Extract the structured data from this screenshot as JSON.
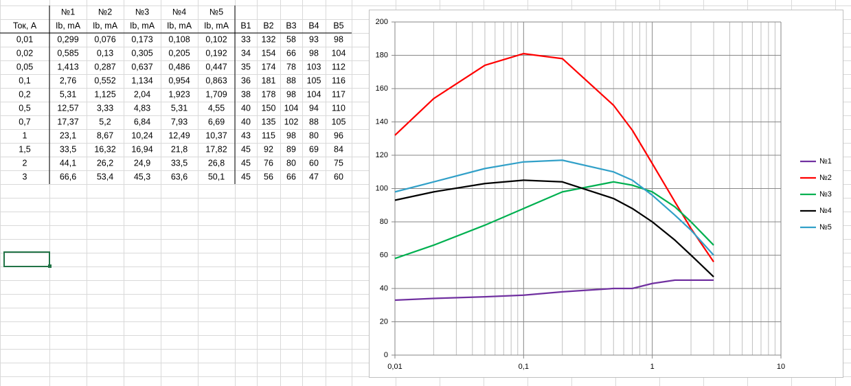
{
  "table": {
    "header": [
      "№1",
      "№2",
      "№3",
      "№4",
      "№5"
    ],
    "columns": [
      "Ток, А",
      "Ib, mA",
      "Ib, mA",
      "Ib, mA",
      "Ib, mA",
      "Ib, mA",
      "B1",
      "B2",
      "B3",
      "B4",
      "B5"
    ],
    "rows": [
      [
        "0,01",
        "0,299",
        "0,076",
        "0,173",
        "0,108",
        "0,102",
        "33",
        "132",
        "58",
        "93",
        "98"
      ],
      [
        "0,02",
        "0,585",
        "0,13",
        "0,305",
        "0,205",
        "0,192",
        "34",
        "154",
        "66",
        "98",
        "104"
      ],
      [
        "0,05",
        "1,413",
        "0,287",
        "0,637",
        "0,486",
        "0,447",
        "35",
        "174",
        "78",
        "103",
        "112"
      ],
      [
        "0,1",
        "2,76",
        "0,552",
        "1,134",
        "0,954",
        "0,863",
        "36",
        "181",
        "88",
        "105",
        "116"
      ],
      [
        "0,2",
        "5,31",
        "1,125",
        "2,04",
        "1,923",
        "1,709",
        "38",
        "178",
        "98",
        "104",
        "117"
      ],
      [
        "0,5",
        "12,57",
        "3,33",
        "4,83",
        "5,31",
        "4,55",
        "40",
        "150",
        "104",
        "94",
        "110"
      ],
      [
        "0,7",
        "17,37",
        "5,2",
        "6,84",
        "7,93",
        "6,69",
        "40",
        "135",
        "102",
        "88",
        "105"
      ],
      [
        "1",
        "23,1",
        "8,67",
        "10,24",
        "12,49",
        "10,37",
        "43",
        "115",
        "98",
        "80",
        "96"
      ],
      [
        "1,5",
        "33,5",
        "16,32",
        "16,94",
        "21,8",
        "17,82",
        "45",
        "92",
        "89",
        "69",
        "84"
      ],
      [
        "2",
        "44,1",
        "26,2",
        "24,9",
        "33,5",
        "26,8",
        "45",
        "76",
        "80",
        "60",
        "75"
      ],
      [
        "3",
        "66,6",
        "53,4",
        "45,3",
        "63,6",
        "50,1",
        "45",
        "56",
        "66",
        "47",
        "60"
      ]
    ]
  },
  "chart_data": {
    "type": "line",
    "x": [
      0.01,
      0.02,
      0.05,
      0.1,
      0.2,
      0.5,
      0.7,
      1,
      1.5,
      2,
      3
    ],
    "series": [
      {
        "name": "№1",
        "color": "#7030a0",
        "values": [
          33,
          34,
          35,
          36,
          38,
          40,
          40,
          43,
          45,
          45,
          45
        ]
      },
      {
        "name": "№2",
        "color": "#ff0000",
        "values": [
          132,
          154,
          174,
          181,
          178,
          150,
          135,
          115,
          92,
          76,
          56
        ]
      },
      {
        "name": "№3",
        "color": "#00b050",
        "values": [
          58,
          66,
          78,
          88,
          98,
          104,
          102,
          98,
          89,
          80,
          66
        ]
      },
      {
        "name": "№4",
        "color": "#000000",
        "values": [
          93,
          98,
          103,
          105,
          104,
          94,
          88,
          80,
          69,
          60,
          47
        ]
      },
      {
        "name": "№5",
        "color": "#31a0c8",
        "values": [
          98,
          104,
          112,
          116,
          117,
          110,
          105,
          96,
          84,
          75,
          60
        ]
      }
    ],
    "xscale": "log",
    "xlim": [
      0.01,
      10
    ],
    "xticks": [
      {
        "value": 0.01,
        "label": "0,01"
      },
      {
        "value": 0.1,
        "label": "0,1"
      },
      1,
      10
    ],
    "ylim": [
      0,
      200
    ],
    "yticks": [
      0,
      20,
      40,
      60,
      80,
      100,
      120,
      140,
      160,
      180,
      200
    ],
    "grid": true,
    "legend": "right"
  }
}
